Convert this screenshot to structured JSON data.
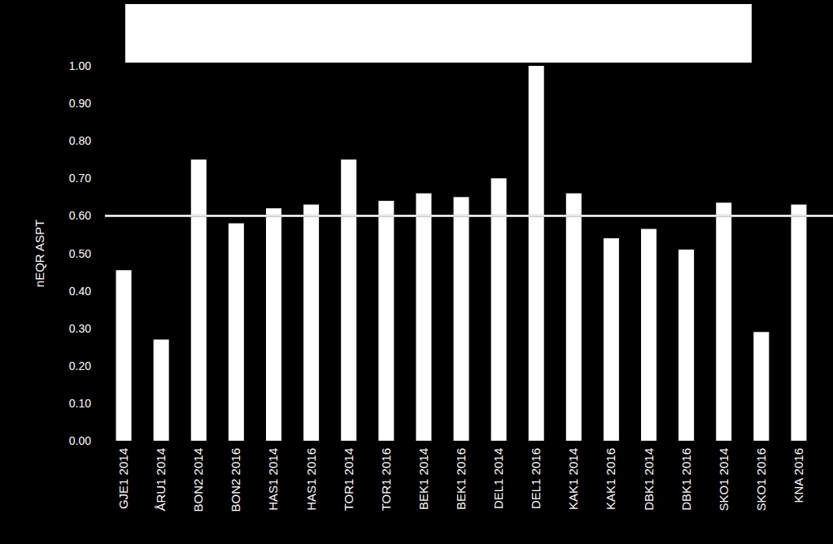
{
  "chart_data": {
    "type": "bar",
    "y_label": "nEQR ASPT",
    "categories": [
      "GJE1 2014",
      "ÅRU1 2014",
      "BON2 2014",
      "BON2 2016",
      "HAS1 2014",
      "HAS1 2016",
      "TOR1 2014",
      "TOR1 2016",
      "BEK1 2014",
      "BEK1 2016",
      "DEL1 2014",
      "DEL1 2016",
      "KAK1 2014",
      "KAK1 2016",
      "DBK1 2014",
      "DBK1 2016",
      "SKO1 2014",
      "SKO1 2016",
      "KNA 2016"
    ],
    "values": [
      0.455,
      0.27,
      0.75,
      0.58,
      0.62,
      0.63,
      0.75,
      0.64,
      0.66,
      0.65,
      0.7,
      1.0,
      0.66,
      0.54,
      0.565,
      0.51,
      0.635,
      0.29,
      0.63
    ],
    "color": "#ffffff",
    "threshold": 0.6,
    "ylim": [
      0,
      1
    ],
    "yticks": [
      {
        "value": 0,
        "label": "0.00"
      },
      {
        "value": 0.1,
        "label": "0.10"
      },
      {
        "value": 0.2,
        "label": "0.20"
      },
      {
        "value": 0.3,
        "label": "0.30"
      },
      {
        "value": 0.4,
        "label": "0.40"
      },
      {
        "value": 0.5,
        "label": "0.50"
      },
      {
        "value": 0.6,
        "label": "0.60"
      },
      {
        "value": 0.7,
        "label": "0.70"
      },
      {
        "value": 0.8,
        "label": "0.80"
      },
      {
        "value": 0.9,
        "label": "0.90"
      },
      {
        "value": 1,
        "label": "1.00"
      }
    ],
    "grid": false
  }
}
